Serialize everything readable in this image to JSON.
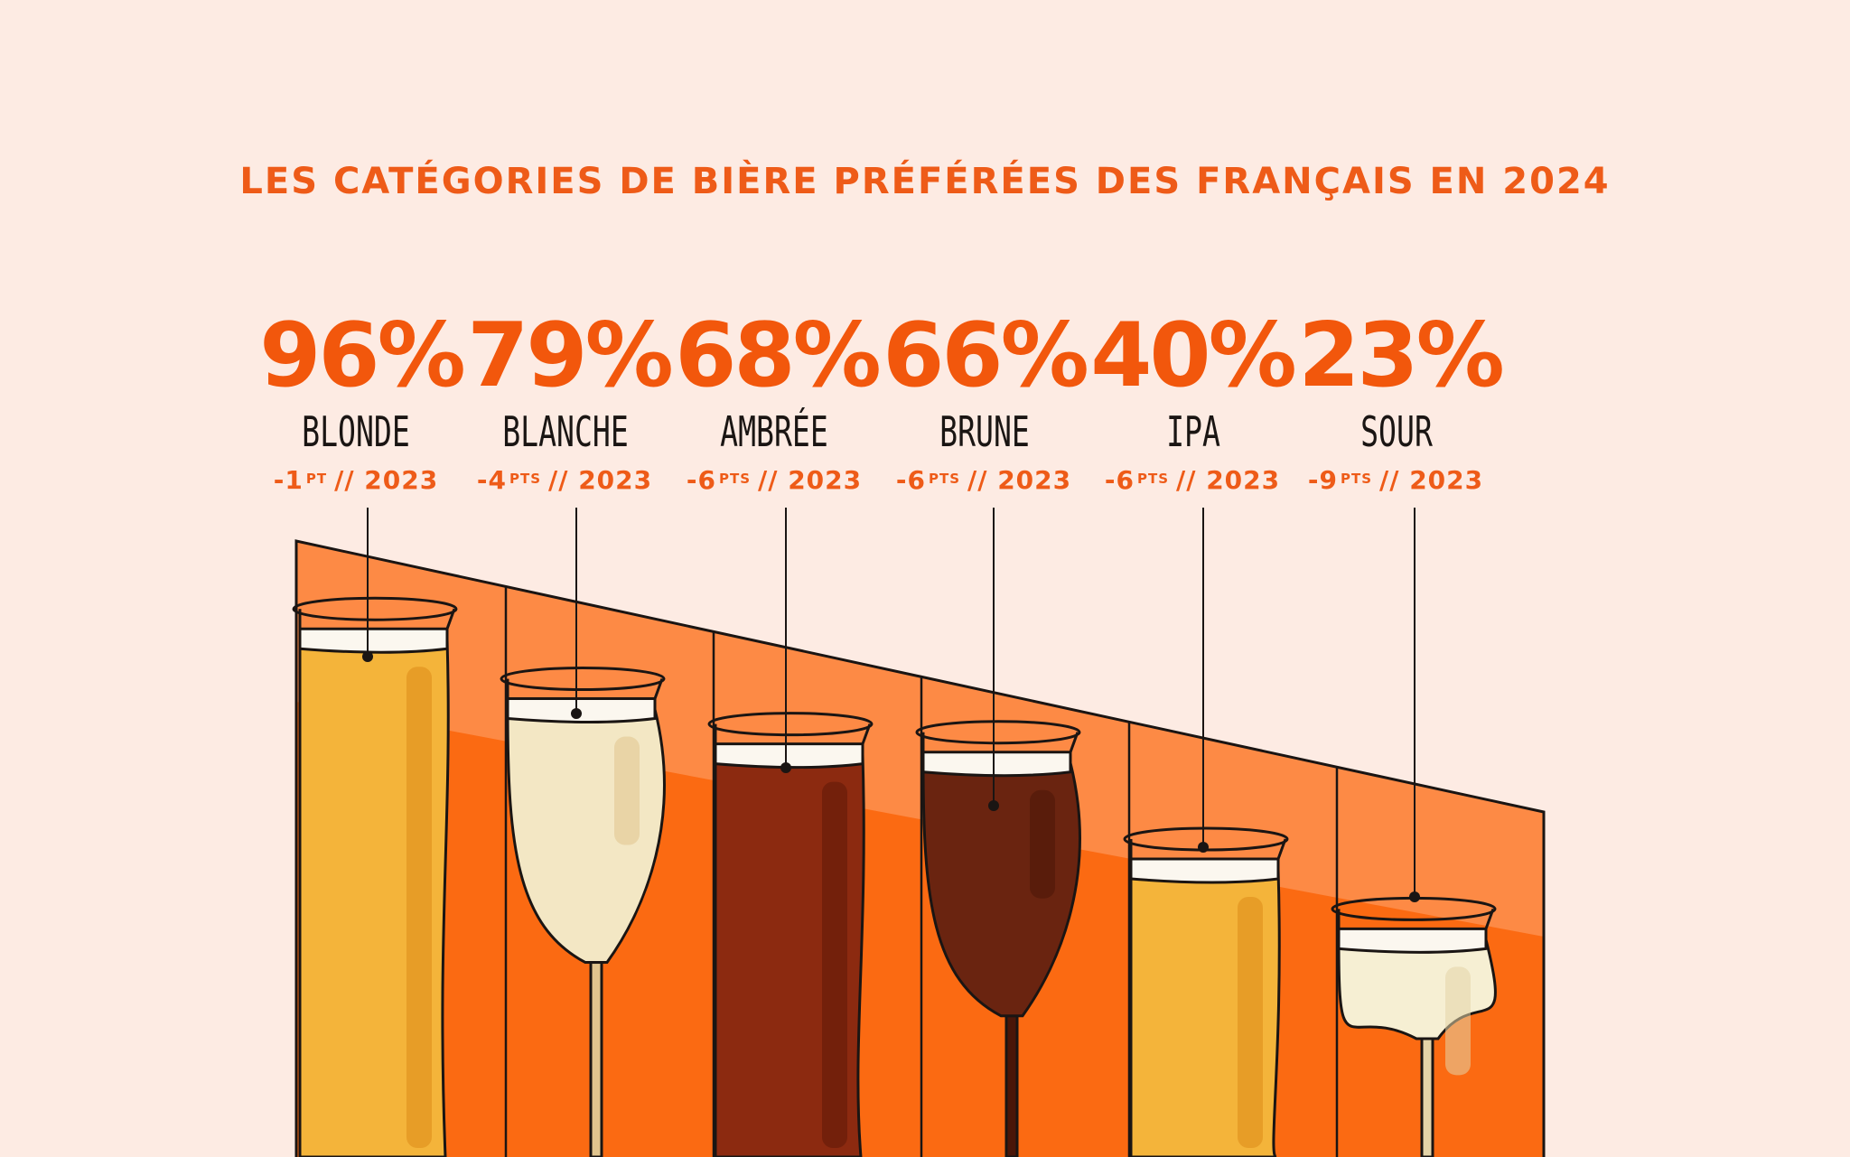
{
  "title": "LES CATÉGORIES DE BIÈRE PRÉFÉRÉES DES FRANÇAIS EN 2024",
  "chart_data": {
    "type": "bar",
    "title": "LES CATÉGORIES DE BIÈRE PRÉFÉRÉES DES FRANÇAIS EN 2024",
    "categories": [
      "BLONDE",
      "BLANCHE",
      "AMBRÉE",
      "BRUNE",
      "IPA",
      "SOUR"
    ],
    "values": [
      96,
      79,
      68,
      66,
      40,
      23
    ],
    "value_labels": [
      "96%",
      "79%",
      "68%",
      "66%",
      "40%",
      "23%"
    ],
    "unit": "%",
    "change_vs_2023": [
      {
        "value": "-1",
        "unit": "PT",
        "suffix": "// 2023"
      },
      {
        "value": "-4",
        "unit": "PTS",
        "suffix": "// 2023"
      },
      {
        "value": "-6",
        "unit": "PTS",
        "suffix": "// 2023"
      },
      {
        "value": "-6",
        "unit": "PTS",
        "suffix": "// 2023"
      },
      {
        "value": "-6",
        "unit": "PTS",
        "suffix": "// 2023"
      },
      {
        "value": "-9",
        "unit": "PTS",
        "suffix": "// 2023"
      }
    ],
    "beer_colors": [
      "#f4b43a",
      "#f3e7c4",
      "#8c2a10",
      "#6a2410",
      "#f4b43a",
      "#f6efd3"
    ]
  },
  "colors": {
    "background": "#fdebe3",
    "accent": "#ee5b18",
    "panel_dark": "#fb6a12",
    "panel_light": "#fd8a45",
    "ink": "#1a1513"
  }
}
